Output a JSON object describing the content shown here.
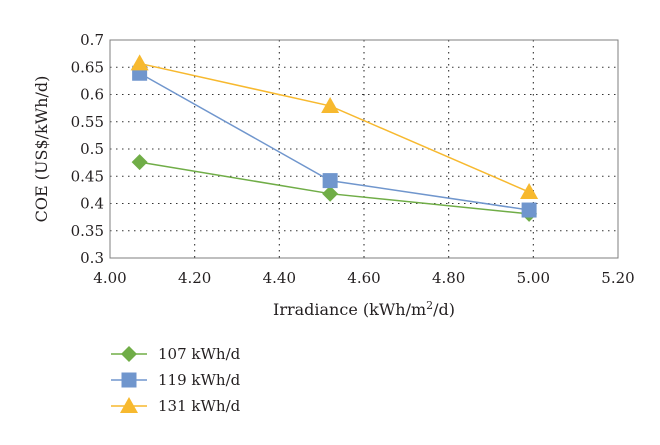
{
  "chart_data": {
    "type": "line",
    "xlabel_base": "Irradiance (kWh/m",
    "xlabel_sup": "2",
    "xlabel_tail": "/d)",
    "ylabel": "COE (US$/kWh/d)",
    "xlim": [
      4.0,
      5.2
    ],
    "ylim": [
      0.3,
      0.7
    ],
    "x_ticks": [
      "4.00",
      "4.20",
      "4.40",
      "4.60",
      "4.80",
      "5.00",
      "5.20"
    ],
    "y_ticks": [
      "0.3",
      "0.35",
      "0.4",
      "0.45",
      "0.5",
      "0.55",
      "0.6",
      "0.65",
      "0.7"
    ],
    "grid": true,
    "legend_position": "bottom-left",
    "series": [
      {
        "name": "107 kWh/d",
        "color": "#70ad47",
        "marker": "diamond",
        "x": [
          4.07,
          4.52,
          4.99
        ],
        "y": [
          0.476,
          0.418,
          0.381
        ]
      },
      {
        "name": "119 kWh/d",
        "color": "#7096cd",
        "marker": "square",
        "x": [
          4.07,
          4.52,
          4.99
        ],
        "y": [
          0.639,
          0.442,
          0.388
        ]
      },
      {
        "name": "131 kWh/d",
        "color": "#f7b92f",
        "marker": "triangle",
        "x": [
          4.07,
          4.52,
          4.99
        ],
        "y": [
          0.657,
          0.579,
          0.421
        ]
      }
    ]
  }
}
